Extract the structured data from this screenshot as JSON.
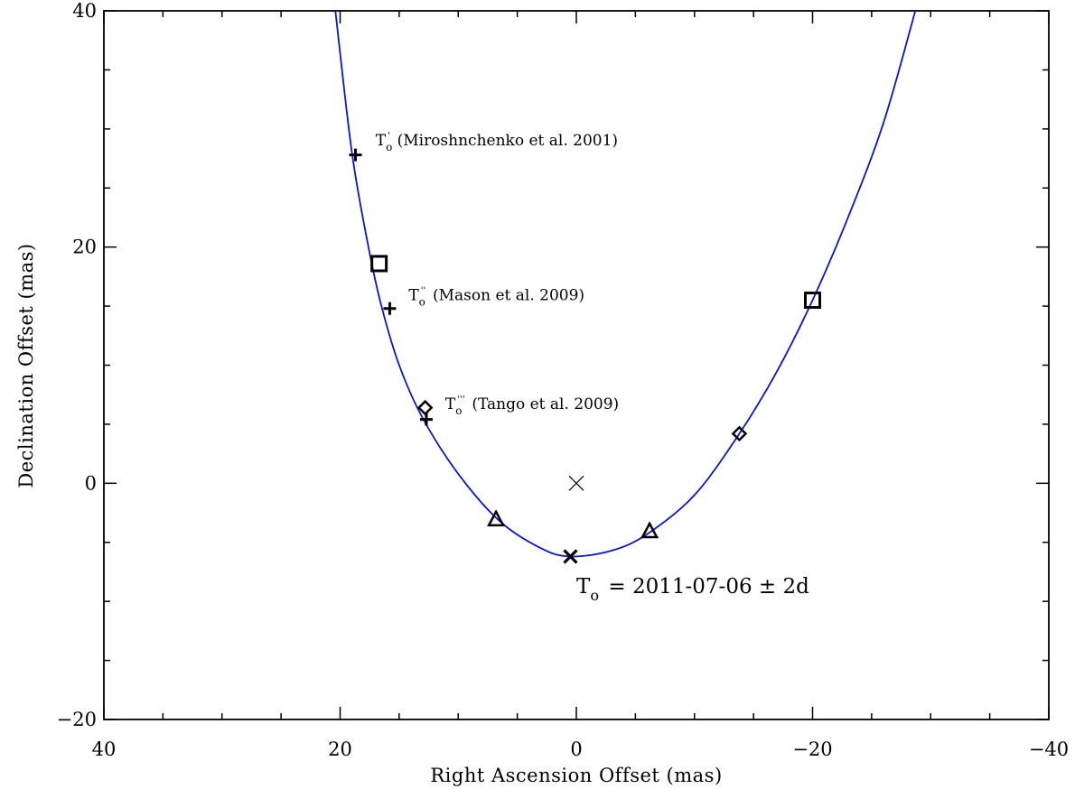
{
  "chart_data": {
    "type": "scatter",
    "title": "",
    "xlabel": "Right Ascension Offset (mas)",
    "ylabel": "Declination Offset (mas)",
    "xlim": [
      40,
      -40
    ],
    "ylim": [
      -20,
      40
    ],
    "x_ticks": [
      40,
      20,
      0,
      -20,
      -40
    ],
    "y_ticks": [
      -20,
      0,
      20,
      40
    ],
    "x_tick_labels": [
      "40",
      "20",
      "0",
      "−20",
      "−40"
    ],
    "y_tick_labels": [
      "−20",
      "0",
      "20",
      "40"
    ],
    "grid": false,
    "orbit_curve": {
      "color": "#0a14d2",
      "comment_free": true,
      "vertex": [
        0.5,
        -6.2
      ],
      "points": [
        [
          20.4,
          40
        ],
        [
          19.0,
          28.0
        ],
        [
          17.6,
          20.0
        ],
        [
          16.5,
          15.0
        ],
        [
          15.0,
          10.0
        ],
        [
          13.0,
          5.5
        ],
        [
          10.0,
          0.8
        ],
        [
          6.5,
          -3.2
        ],
        [
          3.0,
          -5.5
        ],
        [
          0.5,
          -6.2
        ],
        [
          -3.0,
          -5.7
        ],
        [
          -6.0,
          -4.3
        ],
        [
          -10.0,
          -1.0
        ],
        [
          -13.8,
          4.2
        ],
        [
          -17.0,
          9.5
        ],
        [
          -20.0,
          15.5
        ],
        [
          -23.0,
          22.5
        ],
        [
          -26.0,
          30.5
        ],
        [
          -28.7,
          40
        ]
      ]
    },
    "series": [
      {
        "marker": "plus",
        "points": [
          [
            18.7,
            27.8
          ],
          [
            15.8,
            14.8
          ],
          [
            12.7,
            5.4
          ]
        ]
      },
      {
        "marker": "square",
        "points": [
          [
            16.7,
            18.6
          ],
          [
            -20.0,
            15.5
          ]
        ]
      },
      {
        "marker": "diamond",
        "points": [
          [
            12.8,
            6.4
          ],
          [
            -13.8,
            4.2
          ]
        ]
      },
      {
        "marker": "triangle",
        "points": [
          [
            6.8,
            -3.1
          ],
          [
            -6.2,
            -4.1
          ]
        ]
      },
      {
        "marker": "cross-bold",
        "points": [
          [
            0.5,
            -6.2
          ]
        ]
      },
      {
        "marker": "cross-thin",
        "points": [
          [
            0.0,
            0.0
          ]
        ]
      }
    ],
    "annotations": [
      {
        "id": "miroshnchenko",
        "main": "T",
        "sub": "o",
        "sup": "'",
        "rest": "(Miroshnchenko et al. 2001)",
        "at": [
          17.0,
          28.6
        ]
      },
      {
        "id": "mason",
        "main": "T",
        "sub": "o",
        "sup": "''",
        "rest": "(Mason et al. 2009)",
        "at": [
          14.2,
          15.5
        ]
      },
      {
        "id": "tango",
        "main": "T",
        "sub": "o",
        "sup": "'''",
        "rest": "(Tango et al. 2009)",
        "at": [
          11.1,
          6.3
        ]
      },
      {
        "id": "periastron",
        "main": "T",
        "sub": "o",
        "sup": "",
        "rest": "= 2011-07-06 ± 2d",
        "at": [
          0.0,
          -9.3
        ]
      }
    ]
  }
}
